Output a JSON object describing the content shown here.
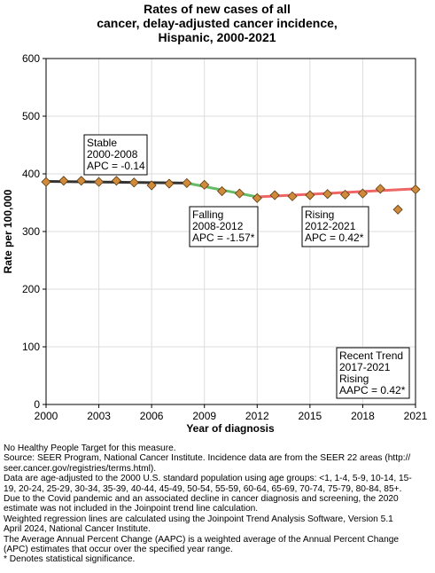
{
  "chart_data": {
    "type": "line",
    "title_lines": [
      "Rates of new cases of all",
      "cancer, delay-adjusted cancer incidence,",
      "Hispanic,  2000-2021"
    ],
    "xlabel": "Year of diagnosis",
    "ylabel": "Rate per 100,000",
    "xlim": [
      2000,
      2021
    ],
    "ylim": [
      0,
      600
    ],
    "x_ticks": [
      "2000",
      "2003",
      "2006",
      "2009",
      "2012",
      "2015",
      "2018",
      "2021"
    ],
    "y_ticks": [
      "0",
      "100",
      "200",
      "300",
      "400",
      "500",
      "600"
    ],
    "grid": true,
    "points": {
      "x": [
        2000,
        2001,
        2002,
        2003,
        2004,
        2005,
        2006,
        2007,
        2008,
        2009,
        2010,
        2011,
        2012,
        2013,
        2014,
        2015,
        2016,
        2017,
        2018,
        2019,
        2020,
        2021
      ],
      "y": [
        386,
        388,
        388,
        386,
        388,
        385,
        380,
        383,
        384,
        381,
        370,
        366,
        358,
        363,
        361,
        363,
        365,
        364,
        366,
        374,
        338,
        373
      ]
    },
    "segments": [
      {
        "x": [
          2000,
          2008
        ],
        "y": [
          387,
          384
        ],
        "color": "#333333"
      },
      {
        "x": [
          2008,
          2012
        ],
        "y": [
          384,
          360
        ],
        "color": "#66bb66"
      },
      {
        "x": [
          2012,
          2021
        ],
        "y": [
          360,
          374
        ],
        "color": "#ef6666"
      }
    ],
    "annotations": [
      {
        "lines": [
          "Stable",
          "2000-2008",
          "APC = -0.14"
        ]
      },
      {
        "lines": [
          "Falling",
          "2008-2012",
          "APC = -1.57*"
        ]
      },
      {
        "lines": [
          "Rising",
          "2012-2021",
          "APC =  0.42*"
        ]
      },
      {
        "lines": [
          "Recent Trend",
          "2017-2021",
          "Rising",
          "AAPC =  0.42*"
        ]
      }
    ],
    "colors": {
      "marker_fill": "#d08a3c",
      "marker_stroke": "#5a3a10",
      "grid": "#dddddd"
    }
  },
  "footnotes": [
    "No Healthy People Target for this measure.",
    "Source: SEER Program, National Cancer Institute. Incidence data are from the SEER 22 areas (http://",
    "seer.cancer.gov/registries/terms.html).",
    "Data are age-adjusted to the 2000 U.S. standard population using age groups: <1, 1-4, 5-9, 10-14, 15-",
    "19, 20-24, 25-29, 30-34, 35-39, 40-44, 45-49, 50-54, 55-59, 60-64, 65-69, 70-74, 75-79, 80-84, 85+.",
    "Due to the Covid pandemic and an associated decline in cancer diagnosis and screening, the 2020",
    "estimate was not included in the Joinpoint trend line calculation.",
    "Weighted regression lines are calculated using the Joinpoint Trend Analysis Software, Version 5.1",
    "April 2024, National Cancer Institute.",
    "The Average Annual Percent Change (AAPC) is a weighted average of the Annual Percent Change",
    "(APC) estimates that occur over the specified year range.",
    "* Denotes statistical significance."
  ]
}
